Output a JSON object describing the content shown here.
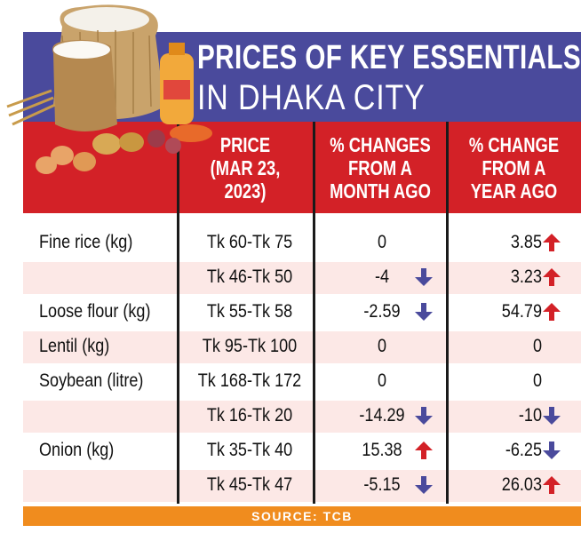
{
  "title": {
    "line1": "PRICES OF KEY ESSENTIALS",
    "line2": "IN DHAKA CITY"
  },
  "headers": {
    "price": "PRICE\n(MAR 23,\n2023)",
    "month": "% CHANGES\nFROM A\nMONTH AGO",
    "year": "% CHANGE\nFROM A\nYEAR AGO"
  },
  "source": "SOURCE: TCB",
  "colors": {
    "title_band": "#4a4a9c",
    "header_band": "#d32127",
    "row_tint": "#fce8e6",
    "source_bar": "#f08c1e",
    "up_arrow": "#d32127",
    "down_arrow": "#4a4a9c"
  },
  "illustration": "food-staples-illustration",
  "chart_data": {
    "type": "table",
    "title": "PRICES OF KEY ESSENTIALS IN DHAKA CITY",
    "columns": [
      "",
      "PRICE (MAR 23, 2023)",
      "% CHANGES FROM A MONTH AGO",
      "% CHANGE FROM A YEAR AGO"
    ],
    "rows": [
      {
        "item": "Fine rice (kg)",
        "price": "Tk 60-Tk 75",
        "month": "0",
        "month_dir": "none",
        "year": "3.85",
        "year_dir": "up",
        "shaded": false
      },
      {
        "item": "",
        "price": "Tk 46-Tk 50",
        "month": "-4",
        "month_dir": "down",
        "year": "3.23",
        "year_dir": "up",
        "shaded": true
      },
      {
        "item": "Loose flour (kg)",
        "price": "Tk 55-Tk 58",
        "month": "-2.59",
        "month_dir": "down",
        "year": "54.79",
        "year_dir": "up",
        "shaded": false
      },
      {
        "item": "Lentil (kg)",
        "price": "Tk 95-Tk 100",
        "month": "0",
        "month_dir": "none",
        "year": "0",
        "year_dir": "none",
        "shaded": true
      },
      {
        "item": "Soybean (litre)",
        "price": "Tk 168-Tk 172",
        "month": "0",
        "month_dir": "none",
        "year": "0",
        "year_dir": "none",
        "shaded": false
      },
      {
        "item": "",
        "price": "Tk 16-Tk 20",
        "month": "-14.29",
        "month_dir": "down",
        "year": "-10",
        "year_dir": "down",
        "shaded": true
      },
      {
        "item": "Onion (kg)",
        "price": "Tk 35-Tk 40",
        "month": "15.38",
        "month_dir": "up",
        "year": "-6.25",
        "year_dir": "down",
        "shaded": false
      },
      {
        "item": "",
        "price": "Tk 45-Tk 47",
        "month": "-5.15",
        "month_dir": "down",
        "year": "26.03",
        "year_dir": "up",
        "shaded": true
      }
    ]
  }
}
